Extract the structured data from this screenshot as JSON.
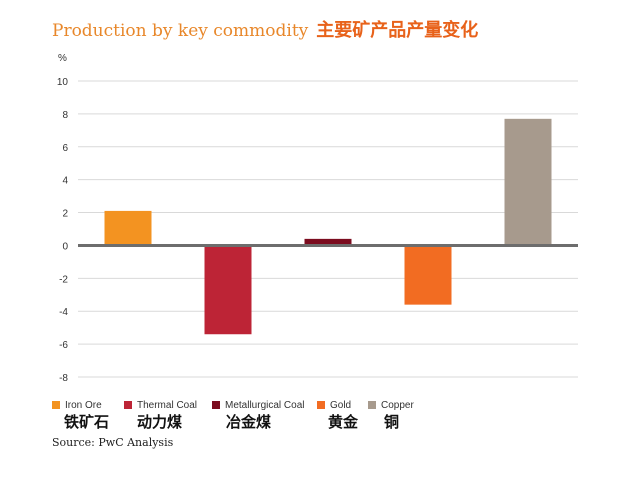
{
  "title_en": "Production by key commodity",
  "title_zh": "主要矿产品产量变化",
  "source": "Source: PwC Analysis",
  "chart_data": {
    "type": "bar",
    "title": "Production by key commodity",
    "ylabel": "%",
    "ylim": [
      -8,
      10
    ],
    "yticks": [
      -8,
      -6,
      -4,
      -2,
      0,
      2,
      4,
      6,
      8,
      10
    ],
    "grid": true,
    "legend": "bottom",
    "categories": [
      "Iron Ore",
      "Thermal Coal",
      "Metallurgical Coal",
      "Gold",
      "Copper"
    ],
    "categories_zh": [
      "铁矿石",
      "动力煤",
      "冶金煤",
      "黄金",
      "铜"
    ],
    "values": [
      2.1,
      -5.4,
      0.4,
      -3.6,
      7.7
    ],
    "colors": [
      "#f39321",
      "#bd2436",
      "#7b0c1f",
      "#f26c22",
      "#a79a8d"
    ]
  }
}
